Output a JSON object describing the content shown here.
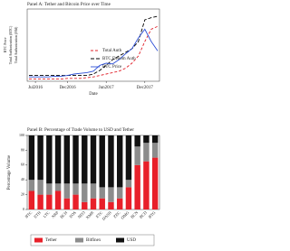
{
  "chart_data": [
    {
      "type": "line",
      "title": "Panel A: Tether and Bitcoin Price over Time",
      "y_labels": [
        "BTC Price",
        "Total Authorization (BTC)",
        "Total Authorization (Mil)"
      ],
      "x_label": "Date",
      "x": [
        "Jun2016",
        "Jul2016",
        "Aug2016",
        "Sep2016",
        "Oct2016",
        "Nov2016",
        "Dec2016",
        "Jan2017",
        "Feb2017",
        "Mar2017",
        "Apr2017",
        "May2017",
        "Jun2017",
        "Jul2017",
        "Aug2017",
        "Sep2017",
        "Oct2017",
        "Nov2017",
        "Dec2017",
        "Jan2018",
        "Feb2018"
      ],
      "xticks": [
        "Jul2016",
        "Dec2016",
        "Jun2017",
        "Dec2017"
      ],
      "ylim": [
        0,
        100
      ],
      "series": [
        {
          "name": "Total Auth",
          "color": "#e0202a",
          "dash": "3,2",
          "values": [
            3,
            3,
            3,
            3,
            3,
            3,
            4,
            4,
            4,
            5,
            6,
            8,
            10,
            12,
            14,
            18,
            25,
            35,
            55,
            72,
            76
          ]
        },
        {
          "name": "BTC Denom Auth",
          "color": "#000000",
          "dash": "4,2",
          "values": [
            8,
            8,
            8,
            8,
            8,
            8,
            8,
            8,
            8,
            8,
            10,
            15,
            22,
            30,
            35,
            40,
            45,
            55,
            85,
            88,
            90
          ]
        },
        {
          "name": "BTC Price",
          "color": "#2d4fd6",
          "dash": null,
          "values": [
            6,
            6,
            6,
            6,
            7,
            7,
            8,
            10,
            11,
            12,
            14,
            22,
            25,
            24,
            30,
            38,
            45,
            60,
            72,
            55,
            42
          ]
        }
      ]
    },
    {
      "type": "stacked-bar",
      "title": "Panel B: Percentage of Trade Volume to USD and Tether",
      "y_label": "Percentage Volume",
      "categories": [
        "BTC",
        "ETH",
        "LTC",
        "XRP",
        "BCH",
        "EOS",
        "NEO",
        "XMR",
        "ETC",
        "DASH",
        "ZEC",
        "OMG",
        "BCN",
        "BCD",
        "BTG"
      ],
      "ylim": [
        0,
        100
      ],
      "yticks": [
        0,
        20,
        40,
        60,
        80,
        100
      ],
      "series": [
        {
          "name": "Tether",
          "color": "#e8202a",
          "values": [
            25,
            20,
            20,
            25,
            15,
            20,
            10,
            15,
            15,
            10,
            15,
            30,
            60,
            65,
            70
          ]
        },
        {
          "name": "Bitfinex",
          "color": "#8c8c8c",
          "values": [
            15,
            20,
            15,
            10,
            20,
            15,
            25,
            20,
            15,
            20,
            15,
            10,
            25,
            25,
            20
          ]
        },
        {
          "name": "USD",
          "color": "#111111",
          "values": [
            60,
            60,
            65,
            65,
            65,
            65,
            65,
            65,
            70,
            70,
            70,
            60,
            15,
            10,
            10
          ]
        }
      ]
    }
  ]
}
